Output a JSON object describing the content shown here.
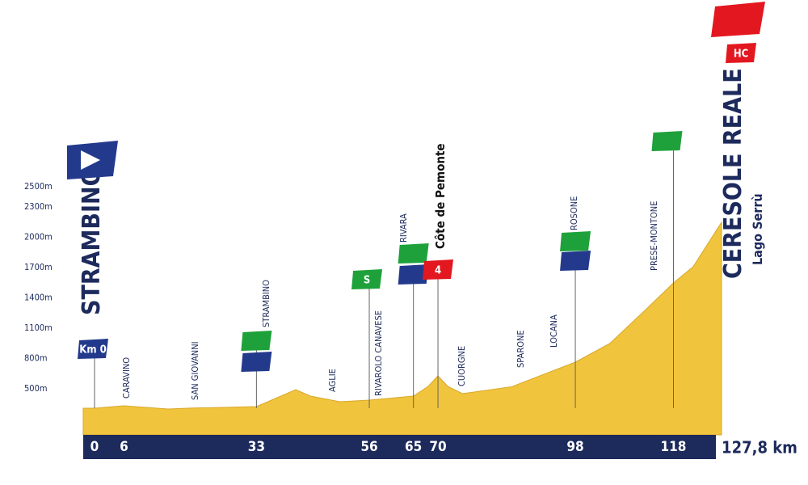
{
  "chart_data": {
    "type": "profile",
    "x": [
      0,
      6,
      15,
      20,
      33,
      38,
      41,
      44,
      50,
      56,
      65,
      68,
      70,
      72,
      75,
      85,
      98,
      105,
      112,
      118,
      122,
      127.8
    ],
    "values": [
      308,
      332,
      300,
      310,
      324,
      428,
      492,
      428,
      372,
      388,
      428,
      524,
      628,
      524,
      452,
      520,
      764,
      948,
      1268,
      1548,
      1708,
      2148
    ],
    "color": "#f0c43c",
    "xlim": [
      0,
      127.8
    ],
    "ylim": [
      0,
      2500
    ],
    "yticks": [
      {
        "value": 500,
        "label": "500m"
      },
      {
        "value": 800,
        "label": "800m"
      },
      {
        "value": 1100,
        "label": "1100m"
      },
      {
        "value": 1400,
        "label": "1400m"
      },
      {
        "value": 1700,
        "label": "1700m"
      },
      {
        "value": 2000,
        "label": "2000m"
      },
      {
        "value": 2300,
        "label": "2300m"
      },
      {
        "value": 2500,
        "label": "2500m"
      }
    ],
    "xticks": [
      0,
      6,
      33,
      56,
      65,
      70,
      98,
      118,
      {
        "value": 127.8,
        "label": "127,8 km"
      }
    ],
    "start": "STRAMBINO",
    "finish": "CERESOLE REALE",
    "finish_sub": "Lago Serrù",
    "climb": "Côte de Pemonte",
    "km0": "Km 0",
    "sprint": "S",
    "climb_cat": "4",
    "finish_cat": "HC",
    "places": [
      "CARAVINO",
      "SAN GIOVANNI",
      "STRAMBINO",
      "AGLIE",
      "RIVAROLO CANAVESE",
      "RIVARA",
      "CUORGNE",
      "SPARONE",
      "LOCANA",
      "ROSONE",
      "PRESE-MONTONE"
    ]
  }
}
